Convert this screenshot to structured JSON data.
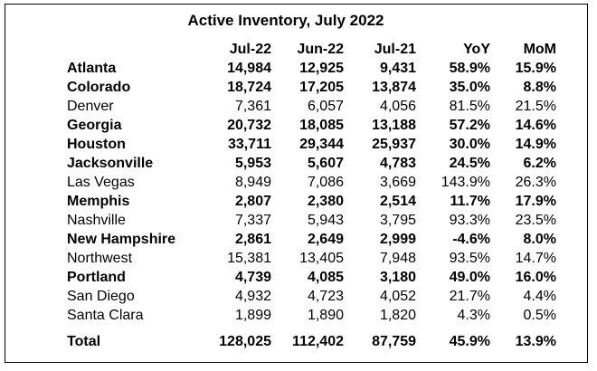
{
  "title": "Active Inventory, July 2022",
  "columns": {
    "name": "",
    "jul22": "Jul-22",
    "jun22": "Jun-22",
    "jul21": "Jul-21",
    "yoy": "YoY",
    "mom": "MoM"
  },
  "rows": [
    {
      "name": "Atlanta",
      "jul22": "14,984",
      "jun22": "12,925",
      "jul21": "9,431",
      "yoy": "58.9%",
      "mom": "15.9%",
      "bold": true
    },
    {
      "name": "Colorado",
      "jul22": "18,724",
      "jun22": "17,205",
      "jul21": "13,874",
      "yoy": "35.0%",
      "mom": "8.8%",
      "bold": true
    },
    {
      "name": "Denver",
      "jul22": "7,361",
      "jun22": "6,057",
      "jul21": "4,056",
      "yoy": "81.5%",
      "mom": "21.5%",
      "bold": false
    },
    {
      "name": "Georgia",
      "jul22": "20,732",
      "jun22": "18,085",
      "jul21": "13,188",
      "yoy": "57.2%",
      "mom": "14.6%",
      "bold": true
    },
    {
      "name": "Houston",
      "jul22": "33,711",
      "jun22": "29,344",
      "jul21": "25,937",
      "yoy": "30.0%",
      "mom": "14.9%",
      "bold": true
    },
    {
      "name": "Jacksonville",
      "jul22": "5,953",
      "jun22": "5,607",
      "jul21": "4,783",
      "yoy": "24.5%",
      "mom": "6.2%",
      "bold": true
    },
    {
      "name": "Las Vegas",
      "jul22": "8,949",
      "jun22": "7,086",
      "jul21": "3,669",
      "yoy": "143.9%",
      "mom": "26.3%",
      "bold": false
    },
    {
      "name": "Memphis",
      "jul22": "2,807",
      "jun22": "2,380",
      "jul21": "2,514",
      "yoy": "11.7%",
      "mom": "17.9%",
      "bold": true
    },
    {
      "name": "Nashville",
      "jul22": "7,337",
      "jun22": "5,943",
      "jul21": "3,795",
      "yoy": "93.3%",
      "mom": "23.5%",
      "bold": false
    },
    {
      "name": "New Hampshire",
      "jul22": "2,861",
      "jun22": "2,649",
      "jul21": "2,999",
      "yoy": "-4.6%",
      "mom": "8.0%",
      "bold": true
    },
    {
      "name": "Northwest",
      "jul22": "15,381",
      "jun22": "13,405",
      "jul21": "7,948",
      "yoy": "93.5%",
      "mom": "14.7%",
      "bold": false
    },
    {
      "name": "Portland",
      "jul22": "4,739",
      "jun22": "4,085",
      "jul21": "3,180",
      "yoy": "49.0%",
      "mom": "16.0%",
      "bold": true
    },
    {
      "name": "San Diego",
      "jul22": "4,932",
      "jun22": "4,723",
      "jul21": "4,052",
      "yoy": "21.7%",
      "mom": "4.4%",
      "bold": false
    },
    {
      "name": "Santa Clara",
      "jul22": "1,899",
      "jun22": "1,890",
      "jul21": "1,820",
      "yoy": "4.3%",
      "mom": "0.5%",
      "bold": false
    }
  ],
  "total": {
    "name": "Total",
    "jul22": "128,025",
    "jun22": "112,402",
    "jul21": "87,759",
    "yoy": "45.9%",
    "mom": "13.9%"
  }
}
